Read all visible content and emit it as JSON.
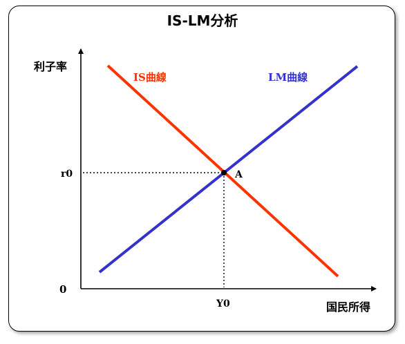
{
  "title": "IS-LM分析",
  "y_axis_label": "利子率",
  "x_axis_label": "国民所得",
  "origin_label": "0",
  "r0_label": "r0",
  "y0_label": "Y0",
  "point_label": "A",
  "is_curve": {
    "label": "IS曲線",
    "color": "#ff3300"
  },
  "lm_curve": {
    "label": "LM曲線",
    "color": "#3333cc"
  }
}
